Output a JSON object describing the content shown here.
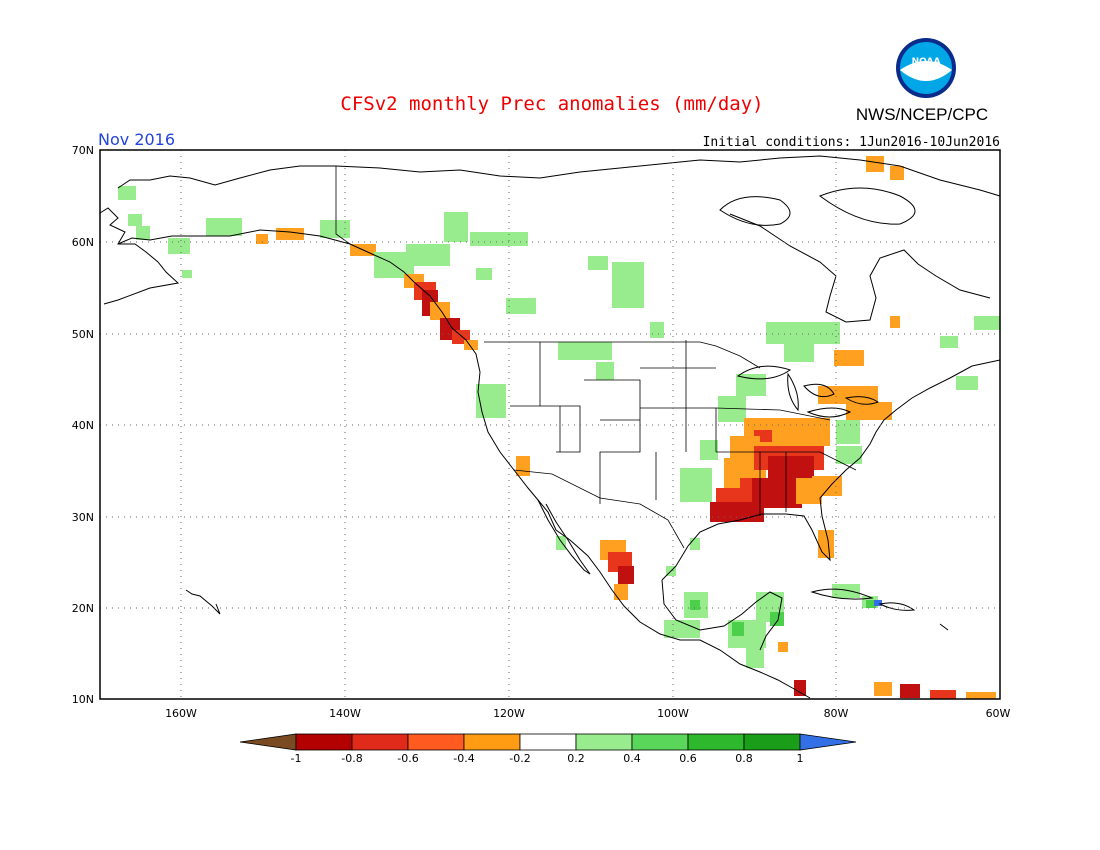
{
  "title": "CFSv2 monthly Prec anomalies (mm/day)",
  "agency": "NWS/NCEP/CPC",
  "logo_text": "NOAA",
  "valid_month": "Nov 2016",
  "initial_conditions": "Initial conditions:  1Jun2016-10Jun2016",
  "lat_ticks": [
    "70N",
    "60N",
    "50N",
    "40N",
    "30N",
    "20N",
    "10N"
  ],
  "lon_ticks": [
    "160W",
    "140W",
    "120W",
    "100W",
    "80W",
    "60W"
  ],
  "colorbar": {
    "labels": [
      "-1",
      "-0.8",
      "-0.6",
      "-0.4",
      "-0.2",
      "0.2",
      "0.4",
      "0.6",
      "0.8",
      "1"
    ],
    "colors": [
      "#7a4a22",
      "#b30000",
      "#e02a1a",
      "#ff5a1f",
      "#ff9c14",
      "#ffffff",
      "#98ec8e",
      "#5ad65a",
      "#2eb82e",
      "#1a9e1a",
      "#3370e6"
    ]
  },
  "colors": {
    "title": "#ee0000",
    "month": "#2244dd",
    "text": "#000000",
    "dry_strong": "#c01010",
    "dry_mid": "#e8361c",
    "dry_light": "#ffa020",
    "wet_light": "#98ec8e",
    "wet_mid": "#4cd04c",
    "wet_strong": "#1a9e1a",
    "wet_max": "#3370e6"
  }
}
